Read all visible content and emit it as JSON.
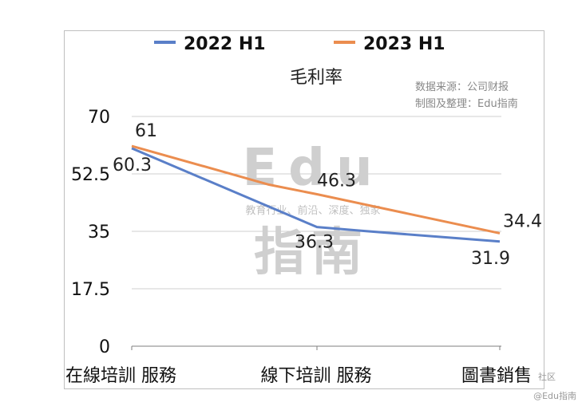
{
  "chart_data": {
    "type": "line",
    "title": "毛利率",
    "categories": [
      "在線培訓 服務",
      "線下培訓 服務",
      "圖書銷售"
    ],
    "series": [
      {
        "name": "2022 H1",
        "values": [
          60.3,
          36.3,
          31.9
        ],
        "color": "#5a7fc8"
      },
      {
        "name": "2023 H1",
        "values": [
          61,
          46.3,
          34.4
        ],
        "color": "#eb8d4f"
      }
    ],
    "ylim": [
      0,
      70
    ],
    "yticks": [
      0,
      17.5,
      35,
      52.5,
      70
    ],
    "ytick_labels": [
      "0",
      "17.5",
      "35",
      "52.5",
      "70"
    ],
    "grid": "horizontal",
    "legend": "top",
    "data_labels": {
      "2022 H1": [
        "60.3",
        "36.3",
        "31.9"
      ],
      "2023 H1": [
        "61",
        "46.3",
        "34.4"
      ]
    }
  },
  "source_note": {
    "line1": "数据来源：公司财报",
    "line2": "制图及整理：Edu指南"
  },
  "watermark": {
    "big_top": "Edu",
    "big_bottom": "指南",
    "tagline": "教育行业、前沿、深度、独家"
  },
  "corner": {
    "community": "社区",
    "handle": "@Edu指南"
  }
}
